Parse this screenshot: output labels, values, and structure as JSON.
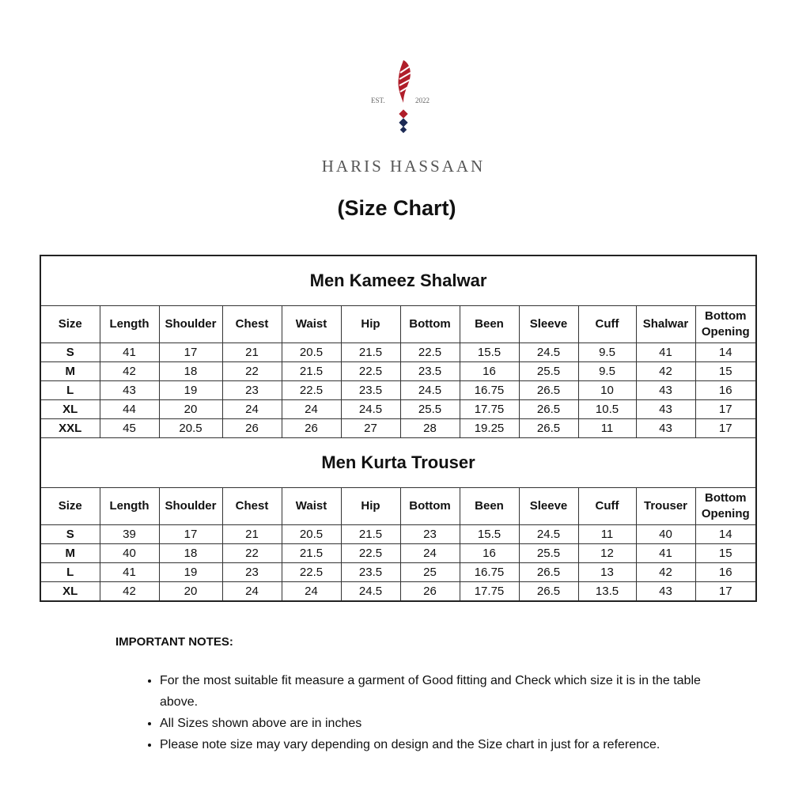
{
  "logo": {
    "est_label": "EST.",
    "year": "2022",
    "brand_name": "HARIS HASSAAN",
    "colors": {
      "red": "#b01e2a",
      "navy": "#1c2a55"
    }
  },
  "page_title": "(Size Chart)",
  "tables": [
    {
      "title": "Men Kameez Shalwar",
      "headers": [
        "Size",
        "Length",
        "Shoulder",
        "Chest",
        "Waist",
        "Hip",
        "Bottom",
        "Been",
        "Sleeve",
        "Cuff",
        "Shalwar",
        "Bottom Opening"
      ],
      "rows": [
        [
          "S",
          "41",
          "17",
          "21",
          "20.5",
          "21.5",
          "22.5",
          "15.5",
          "24.5",
          "9.5",
          "41",
          "14"
        ],
        [
          "M",
          "42",
          "18",
          "22",
          "21.5",
          "22.5",
          "23.5",
          "16",
          "25.5",
          "9.5",
          "42",
          "15"
        ],
        [
          "L",
          "43",
          "19",
          "23",
          "22.5",
          "23.5",
          "24.5",
          "16.75",
          "26.5",
          "10",
          "43",
          "16"
        ],
        [
          "XL",
          "44",
          "20",
          "24",
          "24",
          "24.5",
          "25.5",
          "17.75",
          "26.5",
          "10.5",
          "43",
          "17"
        ],
        [
          "XXL",
          "45",
          "20.5",
          "26",
          "26",
          "27",
          "28",
          "19.25",
          "26.5",
          "11",
          "43",
          "17"
        ]
      ]
    },
    {
      "title": "Men Kurta Trouser",
      "headers": [
        "Size",
        "Length",
        "Shoulder",
        "Chest",
        "Waist",
        "Hip",
        "Bottom",
        "Been",
        "Sleeve",
        "Cuff",
        "Trouser",
        "Bottom Opening"
      ],
      "rows": [
        [
          "S",
          "39",
          "17",
          "21",
          "20.5",
          "21.5",
          "23",
          "15.5",
          "24.5",
          "11",
          "40",
          "14"
        ],
        [
          "M",
          "40",
          "18",
          "22",
          "21.5",
          "22.5",
          "24",
          "16",
          "25.5",
          "12",
          "41",
          "15"
        ],
        [
          "L",
          "41",
          "19",
          "23",
          "22.5",
          "23.5",
          "25",
          "16.75",
          "26.5",
          "13",
          "42",
          "16"
        ],
        [
          "XL",
          "42",
          "20",
          "24",
          "24",
          "24.5",
          "26",
          "17.75",
          "26.5",
          "13.5",
          "43",
          "17"
        ]
      ]
    }
  ],
  "notes": {
    "heading": "IMPORTANT NOTES:",
    "items": [
      "For the most suitable fit measure a garment of Good fitting and Check which size it is in the table above.",
      "All Sizes shown above are in inches",
      "Please note size may vary depending on design and the Size chart in just for a reference."
    ]
  }
}
